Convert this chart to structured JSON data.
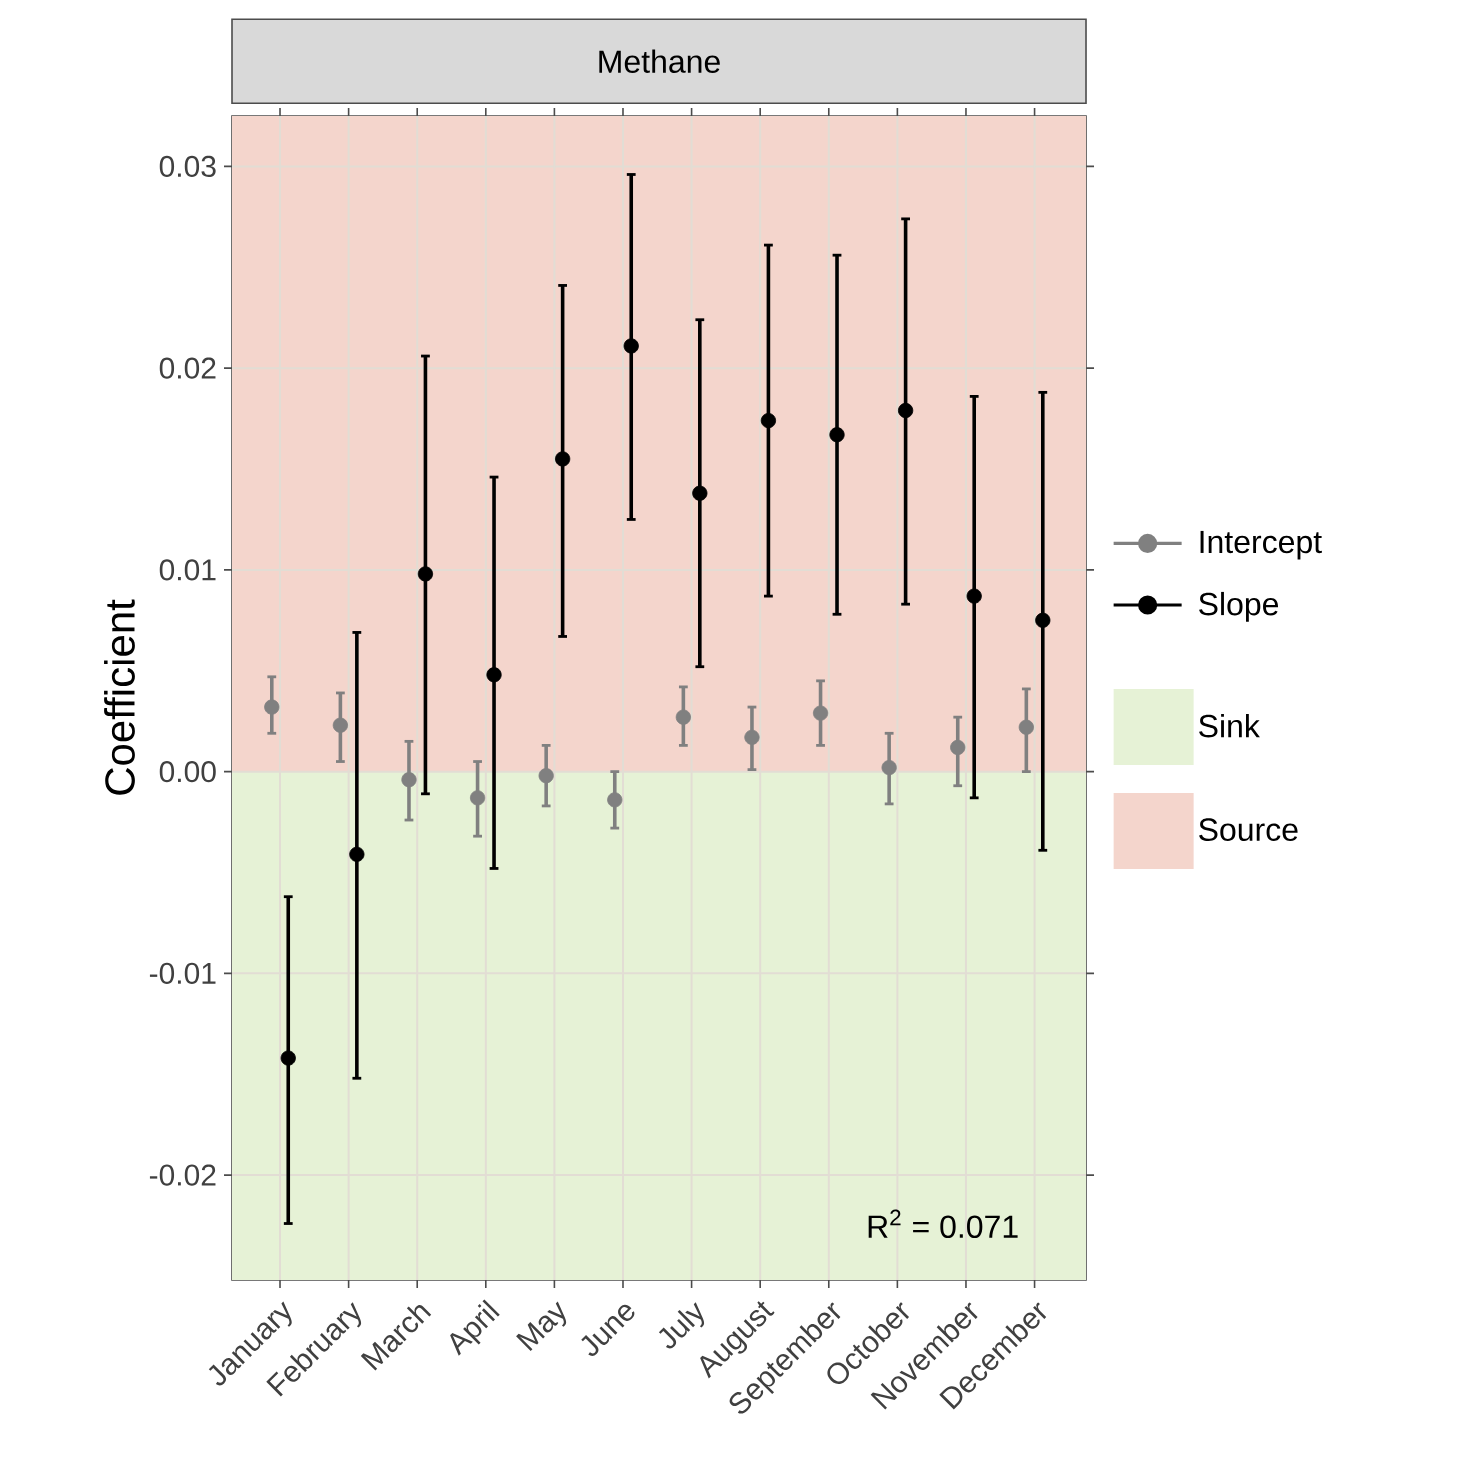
{
  "chart_data": {
    "type": "scatter",
    "title": "Methane",
    "ylabel": "Coefficient",
    "categories": [
      "January",
      "February",
      "March",
      "April",
      "May",
      "June",
      "July",
      "August",
      "September",
      "October",
      "November",
      "December"
    ],
    "series": [
      {
        "name": "Intercept",
        "color": "#808080",
        "values": [
          0.0032,
          0.0023,
          -0.0004,
          -0.0013,
          -0.0002,
          -0.0014,
          0.0027,
          0.0017,
          0.0029,
          0.0002,
          0.0012,
          0.0022
        ],
        "errors": [
          [
            0.0019,
            0.0047
          ],
          [
            0.0005,
            0.0039
          ],
          [
            -0.0024,
            0.0015
          ],
          [
            -0.0032,
            0.0005
          ],
          [
            -0.0017,
            0.0013
          ],
          [
            -0.0028,
            0.0
          ],
          [
            0.0013,
            0.0042
          ],
          [
            0.0001,
            0.0032
          ],
          [
            0.0013,
            0.0045
          ],
          [
            -0.0016,
            0.0019
          ],
          [
            -0.0007,
            0.0027
          ],
          [
            0.0,
            0.0041
          ]
        ]
      },
      {
        "name": "Slope",
        "color": "#000000",
        "values": [
          -0.0142,
          -0.0041,
          0.0098,
          0.0048,
          0.0155,
          0.0211,
          0.0138,
          0.0174,
          0.0167,
          0.0179,
          0.0087,
          0.0075
        ],
        "errors": [
          [
            -0.0224,
            -0.0062
          ],
          [
            -0.0152,
            0.0069
          ],
          [
            -0.0011,
            0.0206
          ],
          [
            -0.0048,
            0.0146
          ],
          [
            0.0067,
            0.0241
          ],
          [
            0.0125,
            0.0296
          ],
          [
            0.0052,
            0.0224
          ],
          [
            0.0087,
            0.0261
          ],
          [
            0.0078,
            0.0256
          ],
          [
            0.0083,
            0.0274
          ],
          [
            -0.0013,
            0.0186
          ],
          [
            -0.0039,
            0.0188
          ]
        ]
      }
    ],
    "ylim": [
      -0.0252,
      0.0325
    ],
    "yticks": [
      -0.02,
      -0.01,
      {
        "value": 0,
        "label": "0.00"
      },
      0.01,
      0.02,
      0.03
    ],
    "bands": [
      {
        "axis": "y",
        "from": -0.0252,
        "to": 0,
        "label": "Sink",
        "color": "#e6f2d6"
      },
      {
        "axis": "y",
        "from": 0,
        "to": 0.0325,
        "label": "Source",
        "color": "#f4d5cc"
      }
    ],
    "annotations": [
      "R$^{2}$ =  0.071"
    ],
    "grid": true,
    "legend": "right",
    "marker": "circle"
  }
}
